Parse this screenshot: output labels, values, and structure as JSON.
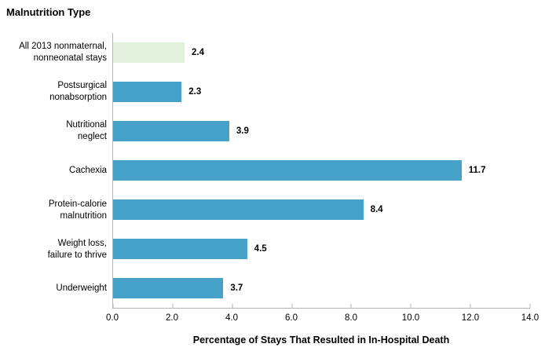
{
  "chart": {
    "title": "Malnutrition Type",
    "xlabel": "Percentage of Stays That Resulted in In-Hospital Death"
  },
  "chart_data": {
    "type": "bar",
    "orientation": "horizontal",
    "title": "Malnutrition Type",
    "xlabel": "Percentage of Stays That Resulted in In-Hospital Death",
    "categories": [
      "All 2013 nonmaternal,\nnonneonatal stays",
      "Postsurgical\nnonabsorption",
      "Nutritional\nneglect",
      "Cachexia",
      "Protein-calorie\nmalnutrition",
      "Weight loss,\nfailure to thrive",
      "Underweight"
    ],
    "values": [
      2.4,
      2.3,
      3.9,
      11.7,
      8.4,
      4.5,
      3.7
    ],
    "data_labels": [
      "2.4",
      "2.3",
      "3.9",
      "11.7",
      "8.4",
      "4.5",
      "3.7"
    ],
    "xlim": [
      0,
      14
    ],
    "xticks": [
      "0.0",
      "2.0",
      "4.0",
      "6.0",
      "8.0",
      "10.0",
      "12.0",
      "14.0"
    ],
    "grid": false,
    "legend": "none",
    "bar_colors": [
      "#e3f0db",
      "#46a2c8",
      "#46a2c8",
      "#46a2c8",
      "#46a2c8",
      "#46a2c8",
      "#46a2c8"
    ],
    "colors": {
      "highlight_bar": "#e3f0db",
      "default_bar": "#46a2c8",
      "axis_line": "#b3b3b3",
      "text": "#000000"
    }
  }
}
